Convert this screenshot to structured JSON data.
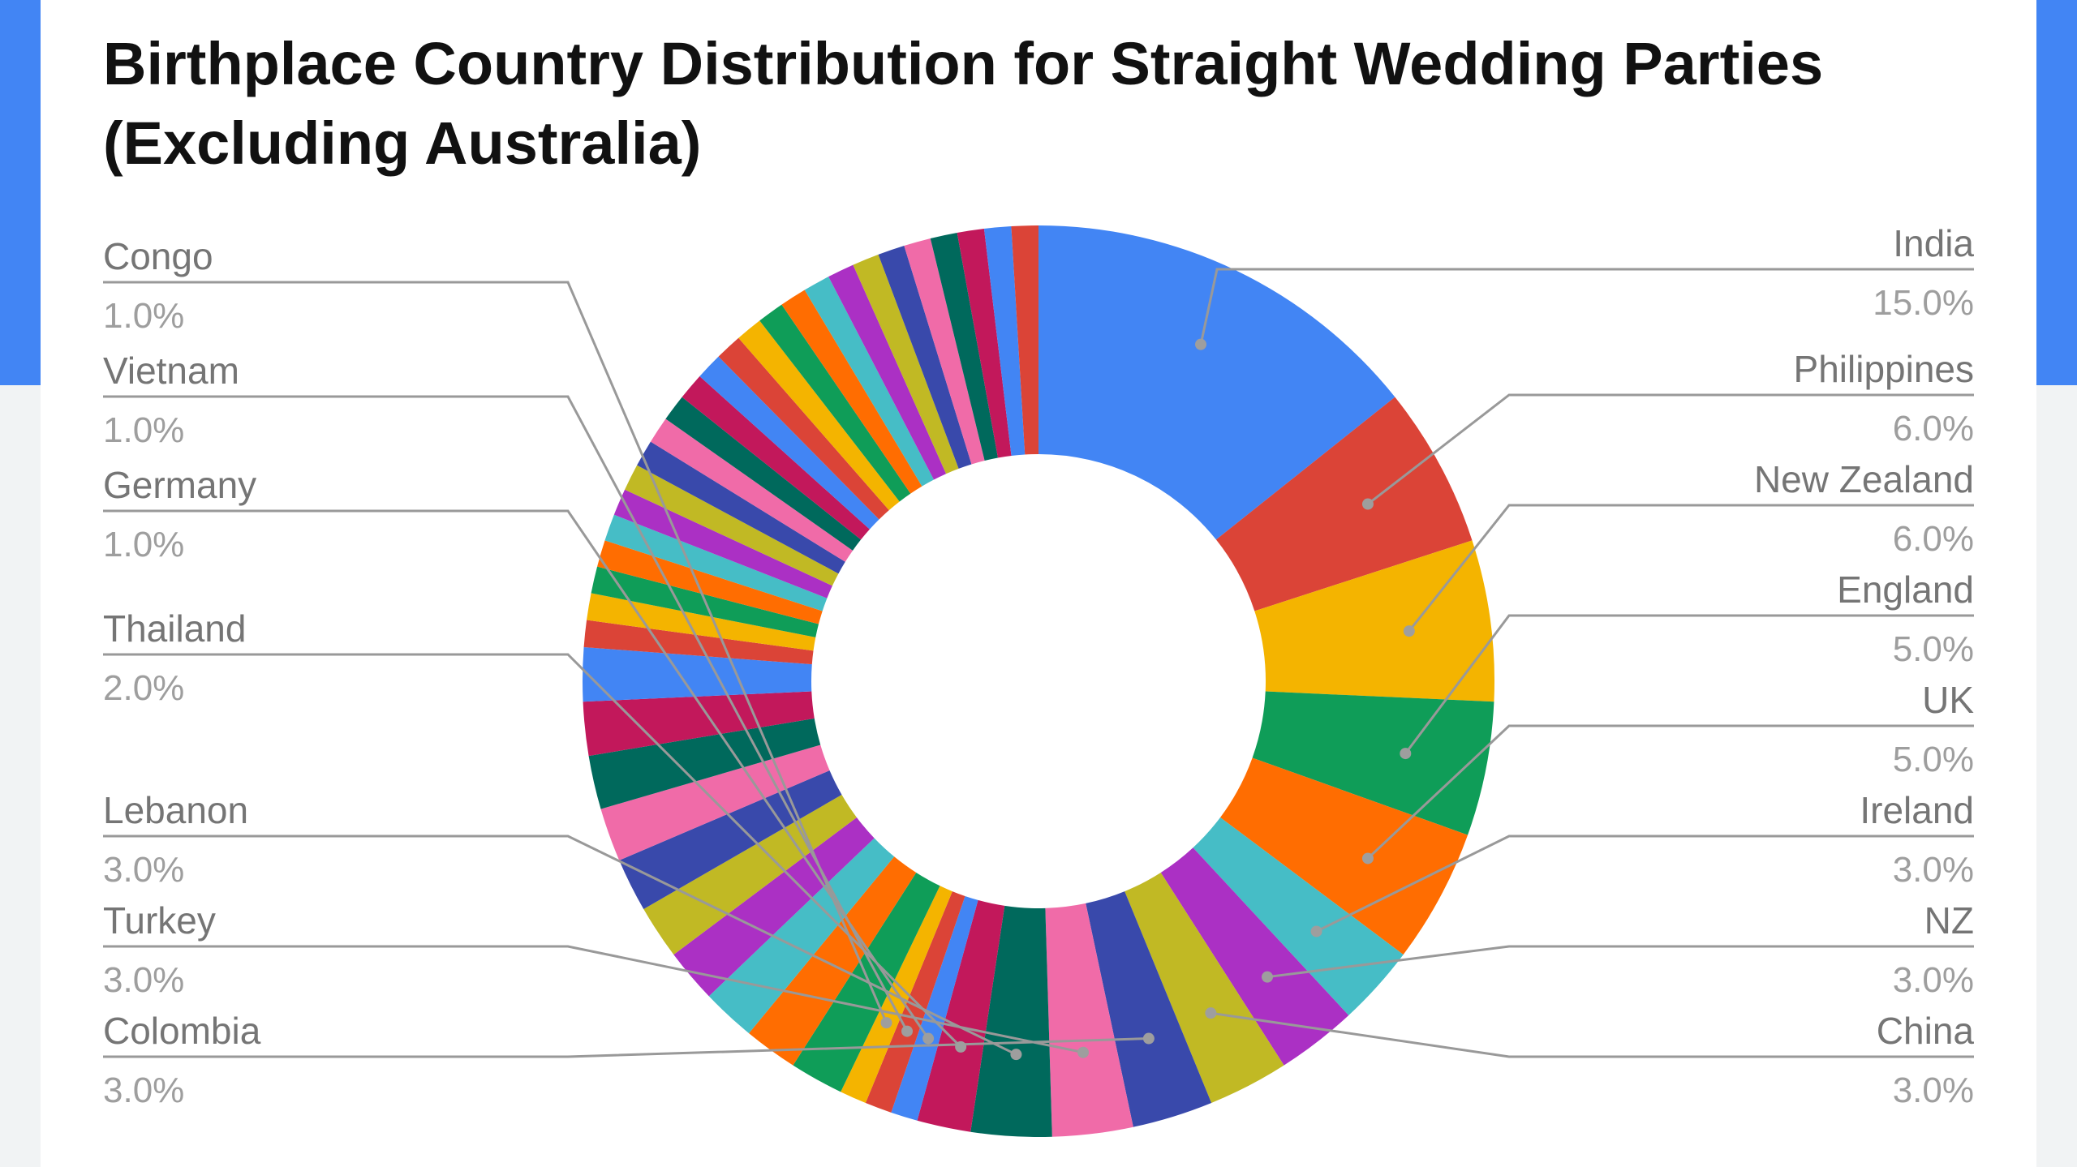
{
  "chart_data": {
    "type": "pie",
    "donut": true,
    "title": "Birthplace Country Distribution for Straight Wedding Parties (Excluding Australia)",
    "legend": "callout-labels",
    "labels": [
      "India",
      "Philippines",
      "New Zealand",
      "England",
      "UK",
      "Ireland",
      "NZ",
      "China",
      "Colombia",
      "Turkey",
      "Lebanon",
      "Thailand",
      "Germany",
      "Vietnam",
      "Congo"
    ],
    "values": [
      15.0,
      6.0,
      6.0,
      5.0,
      5.0,
      3.0,
      3.0,
      3.0,
      3.0,
      3.0,
      3.0,
      2.0,
      1.0,
      1.0,
      1.0
    ],
    "display_values": [
      "15.0%",
      "6.0%",
      "6.0%",
      "5.0%",
      "5.0%",
      "3.0%",
      "3.0%",
      "3.0%",
      "3.0%",
      "3.0%",
      "3.0%",
      "2.0%",
      "1.0%",
      "1.0%",
      "1.0%"
    ],
    "other_slices": [
      2,
      2,
      2,
      2,
      2,
      2,
      2,
      2,
      2,
      2,
      1,
      1,
      1,
      1,
      1,
      1,
      1,
      1,
      1,
      1,
      1,
      1,
      1,
      1,
      1,
      1,
      1,
      1,
      1,
      1,
      1,
      1,
      1,
      1,
      1
    ],
    "colors": [
      "#4285f4",
      "#db4437",
      "#f4b400",
      "#0f9d58",
      "#ff6d01",
      "#46bdc6",
      "#ab30c4",
      "#c1b924",
      "#3949ab",
      "#f06ba8",
      "#00695c",
      "#c2185b"
    ]
  }
}
